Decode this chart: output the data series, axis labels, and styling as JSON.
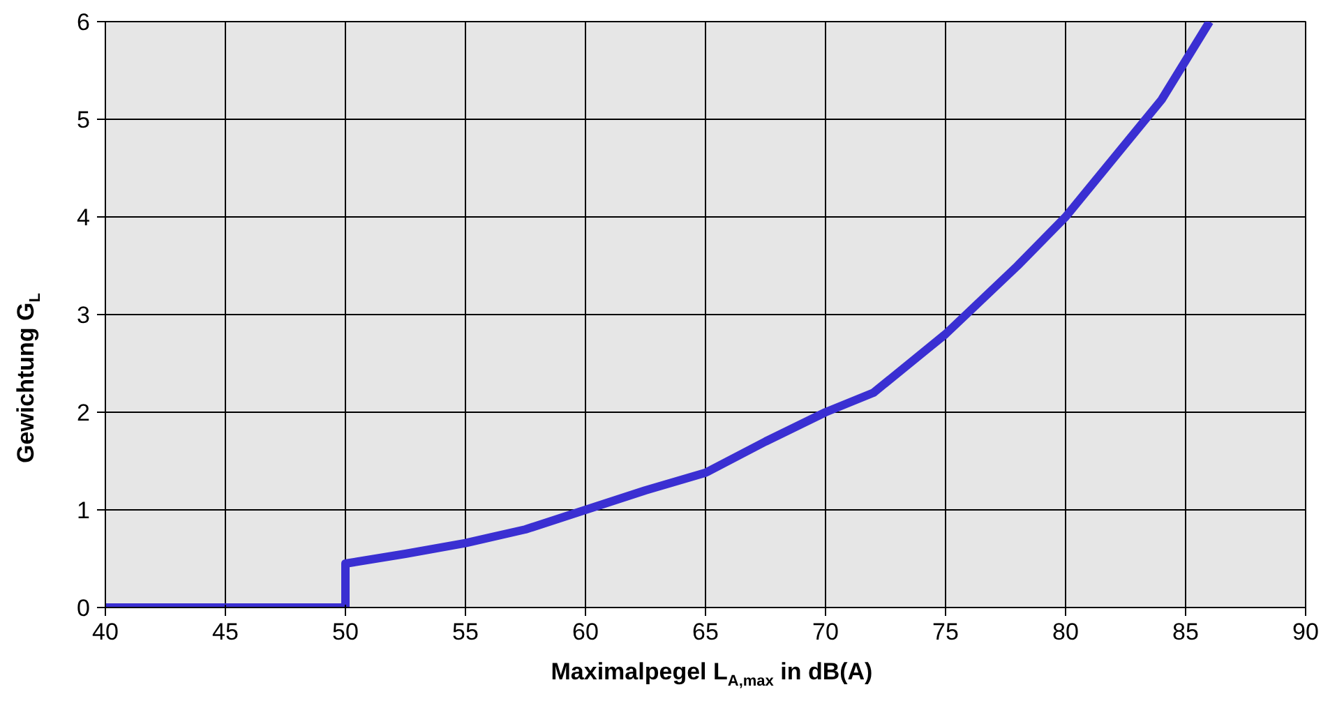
{
  "chart_data": {
    "type": "line",
    "xlabel": "Maximalpegel L$_{A,max}$ in dB(A)",
    "ylabel": "Gewichtung G$_{L}$",
    "series": [
      {
        "color": "#3a2fd2",
        "x": [
          40,
          50,
          50,
          52.5,
          55,
          57.5,
          60,
          62.5,
          65,
          67.5,
          70,
          72,
          75,
          78,
          80,
          82,
          84,
          86
        ],
        "values": [
          0,
          0,
          0.45,
          0.55,
          0.66,
          0.8,
          1.0,
          1.2,
          1.38,
          1.7,
          2.0,
          2.2,
          2.8,
          3.5,
          4.0,
          4.6,
          5.2,
          6.0
        ]
      }
    ],
    "xlim": [
      40,
      90
    ],
    "ylim": [
      0,
      6
    ],
    "xticks": [
      40,
      45,
      50,
      55,
      60,
      65,
      70,
      75,
      80,
      85,
      90
    ],
    "yticks": [
      0,
      1,
      2,
      3,
      4,
      5,
      6
    ],
    "grid": true,
    "marker": "none",
    "line_style": "solid"
  }
}
